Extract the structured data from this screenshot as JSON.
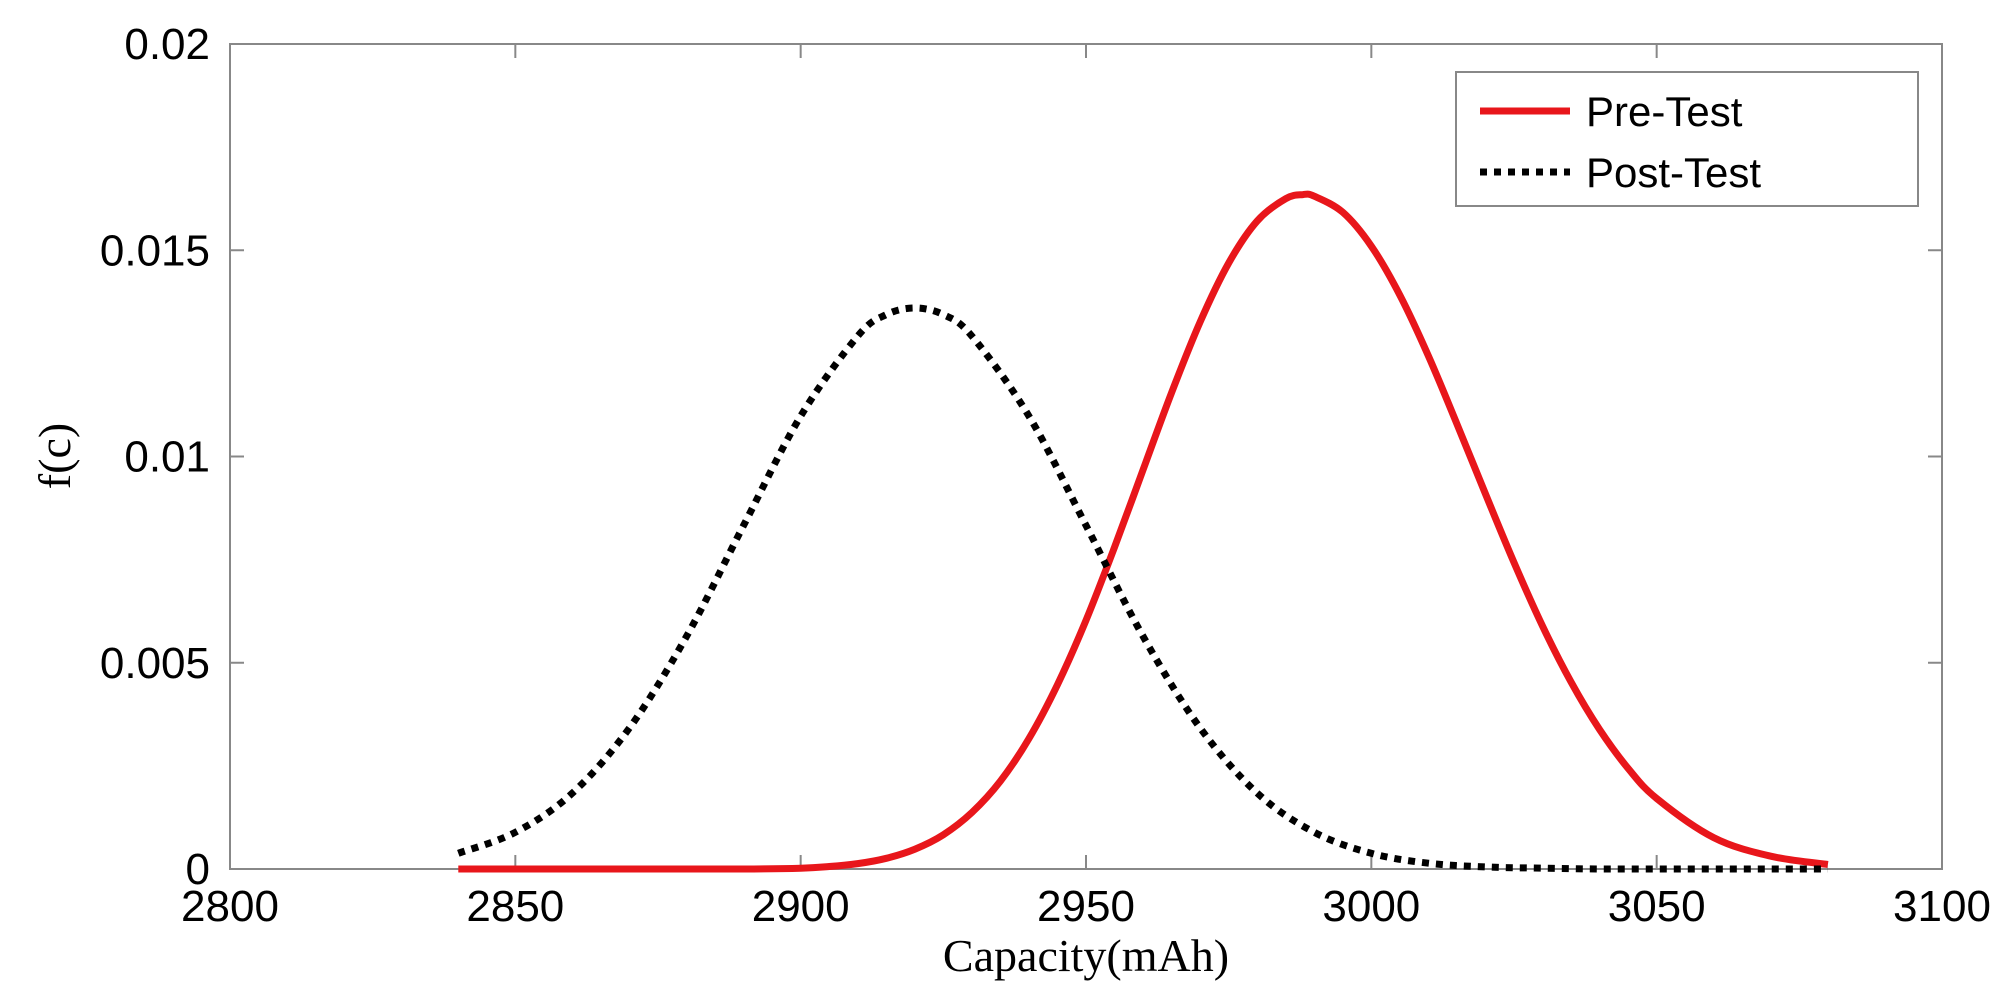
{
  "chart_data": {
    "type": "line",
    "title": "",
    "xlabel": "Capacity(mAh)",
    "ylabel": "f(c)",
    "xlim": [
      2800,
      3100
    ],
    "ylim": [
      0,
      0.02
    ],
    "xticks": [
      2800,
      2850,
      2900,
      2950,
      3000,
      3050,
      3100
    ],
    "xtick_labels": [
      "2800",
      "2850",
      "2900",
      "2950",
      "3000",
      "3050",
      "3100"
    ],
    "yticks": [
      0,
      0.005,
      0.01,
      0.015,
      0.02
    ],
    "ytick_labels": [
      "0",
      "0.005",
      "0.01",
      "0.015",
      "0.02"
    ],
    "grid": false,
    "legend_position": "top-right",
    "series": [
      {
        "name": "Pre-Test",
        "color": "#e8161b",
        "style": "solid",
        "x": [
          2840,
          2850,
          2860,
          2870,
          2880,
          2890,
          2900,
          2905,
          2910,
          2915,
          2920,
          2925,
          2930,
          2935,
          2940,
          2945,
          2950,
          2955,
          2960,
          2965,
          2970,
          2975,
          2980,
          2985,
          2988,
          2990,
          2995,
          3000,
          3005,
          3010,
          3015,
          3020,
          3025,
          3030,
          3035,
          3040,
          3045,
          3050,
          3060,
          3070,
          3080
        ],
        "y": [
          0.0,
          0.0,
          0.0,
          0.0,
          0.0,
          0.0,
          2e-05,
          6e-05,
          0.00013,
          0.00026,
          0.00048,
          0.00083,
          0.00137,
          0.00213,
          0.00316,
          0.00447,
          0.00603,
          0.0078,
          0.00968,
          0.01155,
          0.01326,
          0.01469,
          0.01571,
          0.01625,
          0.01635,
          0.01631,
          0.01592,
          0.0151,
          0.01391,
          0.01244,
          0.01079,
          0.00909,
          0.00743,
          0.00589,
          0.00453,
          0.00338,
          0.00244,
          0.00171,
          0.00076,
          0.00031,
          0.00011
        ]
      },
      {
        "name": "Post-Test",
        "color": "#000000",
        "style": "dotted",
        "x": [
          2840,
          2850,
          2860,
          2870,
          2880,
          2890,
          2900,
          2910,
          2915,
          2920,
          2925,
          2930,
          2940,
          2950,
          2960,
          2970,
          2980,
          2990,
          3000,
          3010,
          3020,
          3030,
          3040,
          3050,
          3060,
          3070,
          3080
        ],
        "y": [
          0.00038,
          0.00089,
          0.00184,
          0.00342,
          0.00564,
          0.00833,
          0.01098,
          0.01292,
          0.01344,
          0.0136,
          0.01344,
          0.01292,
          0.01098,
          0.00833,
          0.00564,
          0.00342,
          0.00184,
          0.00089,
          0.00038,
          0.00014,
          5e-05,
          2e-05,
          0.0,
          0.0,
          0.0,
          0.0,
          0.0
        ]
      }
    ]
  }
}
